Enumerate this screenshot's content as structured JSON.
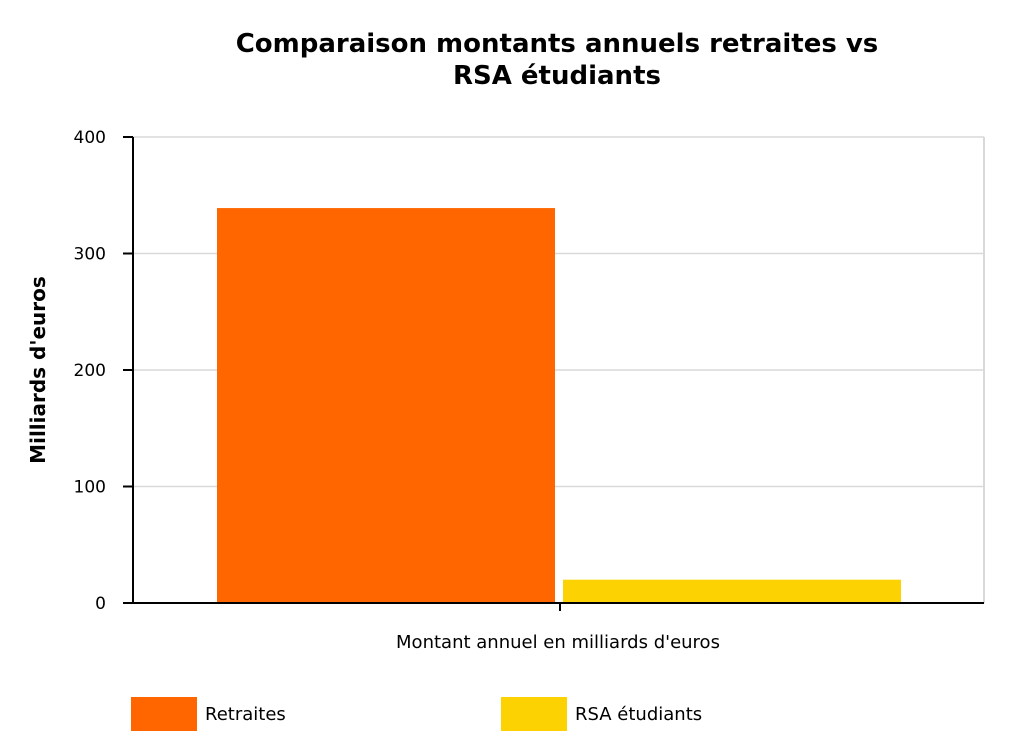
{
  "chart_data": {
    "type": "bar",
    "title": "Comparaison montants annuels retraites vs RSA étudiants",
    "title_lines": [
      "Comparaison montants annuels retraites vs",
      "RSA étudiants"
    ],
    "xlabel": "Montant annuel en milliards d'euros",
    "ylabel": "Milliards d'euros",
    "ylim": [
      0,
      400
    ],
    "yticks": [
      0,
      100,
      200,
      300,
      400
    ],
    "grid": true,
    "legend_position": "bottom",
    "series": [
      {
        "name": "Retraites",
        "values": [
          339
        ],
        "color": "#ff6600"
      },
      {
        "name": "RSA étudiants",
        "values": [
          20
        ],
        "color": "#fcd202"
      }
    ]
  }
}
